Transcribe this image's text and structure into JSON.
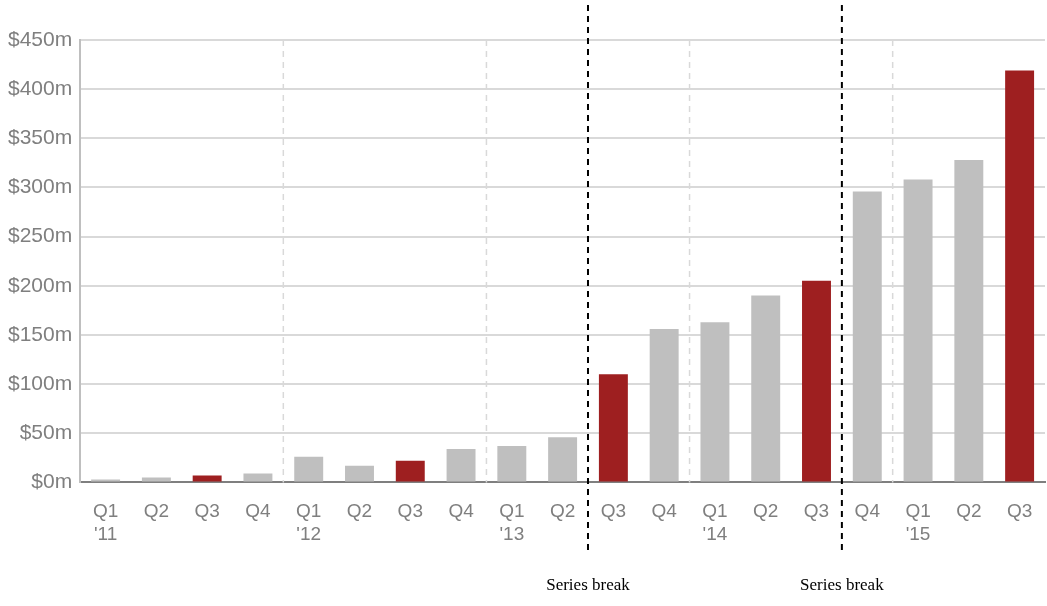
{
  "chart_data": {
    "type": "bar",
    "categories": [
      "Q1\n'11",
      "Q2",
      "Q3",
      "Q4",
      "Q1\n'12",
      "Q2",
      "Q3",
      "Q4",
      "Q1\n'13",
      "Q2",
      "Q3",
      "Q4",
      "Q1\n'14",
      "Q2",
      "Q3",
      "Q4",
      "Q1\n'15",
      "Q2",
      "Q3"
    ],
    "values": [
      3,
      5,
      7,
      9,
      26,
      17,
      22,
      34,
      37,
      46,
      110,
      156,
      163,
      190,
      205,
      296,
      308,
      328,
      419
    ],
    "colors": [
      "#bfbfbf",
      "#bfbfbf",
      "#9e1f20",
      "#bfbfbf",
      "#bfbfbf",
      "#bfbfbf",
      "#9e1f20",
      "#bfbfbf",
      "#bfbfbf",
      "#bfbfbf",
      "#9e1f20",
      "#bfbfbf",
      "#bfbfbf",
      "#bfbfbf",
      "#9e1f20",
      "#bfbfbf",
      "#bfbfbf",
      "#bfbfbf",
      "#9e1f20"
    ],
    "ylim": [
      0,
      450
    ],
    "yticks": [
      {
        "value": 0,
        "label": "$0m"
      },
      {
        "value": 50,
        "label": "$50m"
      },
      {
        "value": 100,
        "label": "$100m"
      },
      {
        "value": 150,
        "label": "$150m"
      },
      {
        "value": 200,
        "label": "$200m"
      },
      {
        "value": 250,
        "label": "$250m"
      },
      {
        "value": 300,
        "label": "$300m"
      },
      {
        "value": 350,
        "label": "$350m"
      },
      {
        "value": 400,
        "label": "$400m"
      },
      {
        "value": 450,
        "label": "$450m"
      }
    ],
    "grid": "y",
    "annotations": [
      "Series break",
      "Series break"
    ]
  }
}
